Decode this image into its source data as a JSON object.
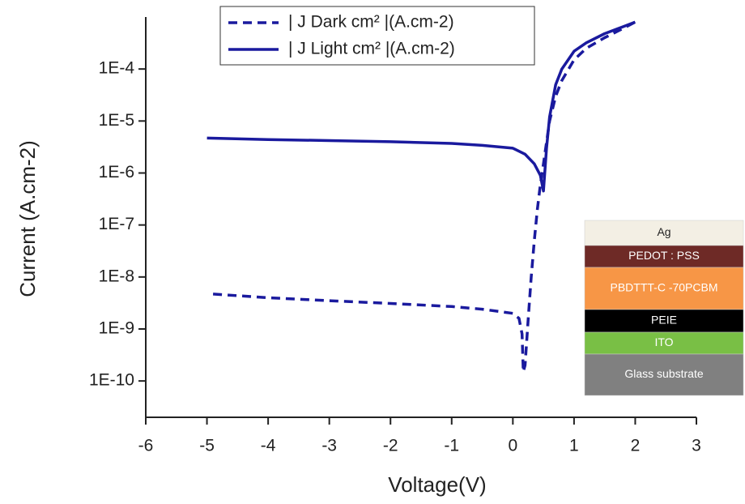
{
  "chart_data": {
    "type": "line",
    "xlabel": "Voltage(V)",
    "ylabel": "Current (A.cm-2)",
    "xlim": [
      -6,
      3
    ],
    "xticks": [
      -6,
      -5,
      -4,
      -3,
      -2,
      -1,
      0,
      1,
      2,
      3
    ],
    "ylim": [
      2e-11,
      0.001
    ],
    "log_y": true,
    "yticks": [
      {
        "value": 1e-10,
        "label": "1E-10"
      },
      {
        "value": 1e-09,
        "label": "1E-9"
      },
      {
        "value": 1e-08,
        "label": "1E-8"
      },
      {
        "value": 1e-07,
        "label": "1E-7"
      },
      {
        "value": 1e-06,
        "label": "1E-6"
      },
      {
        "value": 1e-05,
        "label": "1E-5"
      },
      {
        "value": 0.0001,
        "label": "1E-4"
      }
    ],
    "legend": "upper left",
    "series": [
      {
        "name": "| J Dark cm² |(A.cm-2)",
        "color": "#1a1a9e",
        "dashed": true,
        "x": [
          -4.9,
          -4,
          -3,
          -2,
          -1,
          -0.5,
          0,
          0.1,
          0.15,
          0.17,
          0.2,
          0.25,
          0.3,
          0.35,
          0.4,
          0.45,
          0.5,
          0.6,
          0.7,
          0.8,
          1.0,
          1.2,
          1.5,
          1.8,
          2.0
        ],
        "values": [
          4.7e-09,
          4e-09,
          3.5e-09,
          3.1e-09,
          2.7e-09,
          2.4e-09,
          2e-09,
          1.6e-09,
          8e-10,
          1.5e-10,
          2e-10,
          1.5e-09,
          1e-08,
          5e-08,
          2e-07,
          6e-07,
          1.5e-06,
          1e-05,
          3e-05,
          6e-05,
          0.00015,
          0.00025,
          0.0004,
          0.0006,
          0.0008
        ]
      },
      {
        "name": "| J Light cm² |(A.cm-2)",
        "color": "#1a1a9e",
        "dashed": false,
        "x": [
          -5,
          -4,
          -3,
          -2,
          -1,
          -0.5,
          0,
          0.2,
          0.35,
          0.45,
          0.5,
          0.55,
          0.6,
          0.7,
          0.8,
          1.0,
          1.2,
          1.5,
          1.8,
          2.0
        ],
        "values": [
          4.7e-06,
          4.4e-06,
          4.2e-06,
          4e-06,
          3.7e-06,
          3.4e-06,
          3e-06,
          2.3e-06,
          1.5e-06,
          9e-07,
          4.5e-07,
          3e-06,
          1.2e-05,
          5e-05,
          0.0001,
          0.00022,
          0.00032,
          0.00048,
          0.00065,
          0.0008
        ]
      }
    ],
    "inset": {
      "layers": [
        {
          "label": "Ag",
          "color": "#f3efe4",
          "text_color": "#222222"
        },
        {
          "label": "PEDOT : PSS",
          "color": "#6e2a26",
          "text_color": "#ffffff"
        },
        {
          "label": "PBDTTT-C -70PCBM",
          "color": "#f79646",
          "text_color": "#ffffff"
        },
        {
          "label": "PEIE",
          "color": "#000000",
          "text_color": "#ffffff"
        },
        {
          "label": "ITO",
          "color": "#79bf45",
          "text_color": "#ffffff"
        },
        {
          "label": "Glass substrate",
          "color": "#808080",
          "text_color": "#ffffff"
        }
      ]
    }
  }
}
